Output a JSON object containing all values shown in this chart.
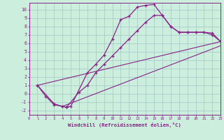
{
  "xlabel": "Windchill (Refroidissement éolien,°C)",
  "bg_color": "#cceedd",
  "grid_color": "#aacccc",
  "line_color": "#882288",
  "xmin": 0,
  "xmax": 23,
  "ymin": -2.5,
  "ymax": 10.8,
  "yticks": [
    -2,
    -1,
    0,
    1,
    2,
    3,
    4,
    5,
    6,
    7,
    8,
    9,
    10
  ],
  "curve1_x": [
    1,
    2,
    3,
    4,
    4.5,
    5,
    7,
    8,
    9,
    10,
    11,
    12,
    13,
    14,
    15,
    16,
    17,
    18,
    19,
    20,
    21,
    22,
    23
  ],
  "curve1_y": [
    1,
    -0.3,
    -1.3,
    -1.5,
    -1.6,
    -1.5,
    2.5,
    3.5,
    4.6,
    6.5,
    8.8,
    9.2,
    10.3,
    10.5,
    10.6,
    9.3,
    8.0,
    7.3,
    7.3,
    7.3,
    7.3,
    7.2,
    6.2
  ],
  "curve2_x": [
    1,
    3,
    4,
    4.5,
    6,
    7,
    8,
    9,
    10,
    11,
    12,
    13,
    14,
    15,
    16,
    17,
    18,
    19,
    20,
    21,
    22,
    23
  ],
  "curve2_y": [
    1,
    -1.2,
    -1.5,
    -1.6,
    0.2,
    1.0,
    2.5,
    3.5,
    4.5,
    5.5,
    6.5,
    7.5,
    8.5,
    9.3,
    9.3,
    8.0,
    7.3,
    7.3,
    7.3,
    7.3,
    7.0,
    6.2
  ],
  "line1_x": [
    1,
    23
  ],
  "line1_y": [
    1,
    6.2
  ],
  "line2_x": [
    4,
    23
  ],
  "line2_y": [
    -1.5,
    5.7
  ]
}
